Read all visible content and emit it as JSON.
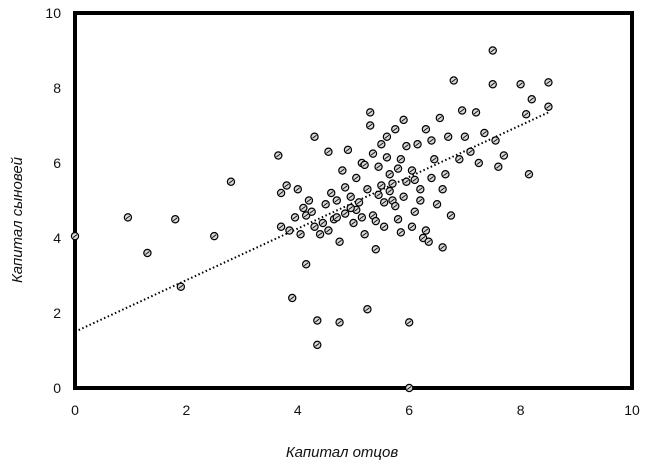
{
  "chart_data": {
    "type": "scatter",
    "title": "",
    "xlabel": "Капитал отцов",
    "ylabel": "Капитал сыновей",
    "xlim": [
      0,
      10
    ],
    "ylim": [
      0,
      10
    ],
    "x_ticks": [
      "0",
      "2",
      "4",
      "6",
      "8",
      "10"
    ],
    "y_ticks": [
      "0",
      "2",
      "4",
      "6",
      "8",
      "10"
    ],
    "grid": false,
    "legend": "none",
    "trendline": {
      "type": "linear",
      "x": [
        0,
        8.5
      ],
      "y": [
        1.5,
        7.35
      ]
    },
    "points": [
      [
        0,
        4.05
      ],
      [
        0.95,
        4.55
      ],
      [
        1.3,
        3.6
      ],
      [
        1.8,
        4.5
      ],
      [
        1.9,
        2.7
      ],
      [
        2.5,
        4.05
      ],
      [
        2.8,
        5.5
      ],
      [
        3.65,
        6.2
      ],
      [
        3.7,
        4.3
      ],
      [
        3.7,
        5.2
      ],
      [
        3.8,
        5.4
      ],
      [
        3.85,
        4.2
      ],
      [
        3.9,
        2.4
      ],
      [
        3.95,
        4.55
      ],
      [
        4.0,
        5.3
      ],
      [
        4.05,
        4.1
      ],
      [
        4.1,
        4.8
      ],
      [
        4.15,
        3.3
      ],
      [
        4.15,
        4.6
      ],
      [
        4.2,
        5.0
      ],
      [
        4.25,
        4.7
      ],
      [
        4.3,
        6.7
      ],
      [
        4.35,
        1.8
      ],
      [
        4.35,
        1.15
      ],
      [
        4.4,
        4.1
      ],
      [
        4.45,
        4.4
      ],
      [
        4.5,
        4.9
      ],
      [
        4.55,
        6.3
      ],
      [
        4.6,
        5.2
      ],
      [
        4.65,
        4.5
      ],
      [
        4.7,
        5.0
      ],
      [
        4.75,
        3.9
      ],
      [
        4.75,
        1.75
      ],
      [
        4.8,
        5.8
      ],
      [
        4.85,
        4.65
      ],
      [
        4.9,
        6.35
      ],
      [
        4.95,
        5.1
      ],
      [
        5.0,
        4.4
      ],
      [
        5.05,
        5.6
      ],
      [
        5.1,
        4.95
      ],
      [
        5.15,
        6.0
      ],
      [
        5.2,
        4.1
      ],
      [
        5.25,
        5.3
      ],
      [
        5.3,
        7.0
      ],
      [
        5.3,
        7.35
      ],
      [
        5.25,
        2.1
      ],
      [
        5.35,
        4.6
      ],
      [
        5.4,
        3.7
      ],
      [
        5.45,
        5.9
      ],
      [
        5.5,
        5.4
      ],
      [
        5.55,
        4.3
      ],
      [
        5.6,
        6.7
      ],
      [
        5.65,
        5.7
      ],
      [
        5.7,
        5.0
      ],
      [
        5.75,
        6.9
      ],
      [
        5.8,
        4.5
      ],
      [
        5.85,
        6.1
      ],
      [
        5.9,
        7.15
      ],
      [
        5.95,
        5.5
      ],
      [
        6.0,
        1.75
      ],
      [
        6.0,
        0.0
      ],
      [
        6.05,
        5.8
      ],
      [
        6.1,
        4.7
      ],
      [
        6.15,
        6.5
      ],
      [
        6.2,
        5.3
      ],
      [
        6.25,
        4.0
      ],
      [
        6.3,
        6.9
      ],
      [
        6.35,
        3.9
      ],
      [
        6.4,
        5.6
      ],
      [
        6.45,
        6.1
      ],
      [
        6.5,
        4.9
      ],
      [
        6.55,
        7.2
      ],
      [
        6.6,
        3.75
      ],
      [
        6.65,
        5.7
      ],
      [
        6.7,
        6.7
      ],
      [
        6.75,
        4.6
      ],
      [
        6.8,
        8.2
      ],
      [
        6.9,
        6.1
      ],
      [
        6.95,
        7.4
      ],
      [
        7.0,
        6.7
      ],
      [
        7.1,
        6.3
      ],
      [
        7.2,
        7.35
      ],
      [
        7.25,
        6.0
      ],
      [
        7.35,
        6.8
      ],
      [
        7.5,
        9.0
      ],
      [
        7.5,
        8.1
      ],
      [
        7.55,
        6.6
      ],
      [
        7.6,
        5.9
      ],
      [
        7.7,
        6.2
      ],
      [
        8.0,
        8.1
      ],
      [
        8.1,
        7.3
      ],
      [
        8.15,
        5.7
      ],
      [
        8.2,
        7.7
      ],
      [
        8.5,
        8.15
      ],
      [
        8.5,
        7.5
      ],
      [
        4.55,
        4.2
      ],
      [
        4.85,
        5.35
      ],
      [
        5.05,
        4.75
      ],
      [
        5.35,
        6.25
      ],
      [
        5.45,
        5.15
      ],
      [
        5.6,
        6.15
      ],
      [
        5.7,
        5.45
      ],
      [
        5.8,
        5.85
      ],
      [
        5.95,
        6.45
      ],
      [
        6.05,
        4.3
      ],
      [
        6.2,
        5.0
      ],
      [
        6.3,
        4.2
      ],
      [
        5.15,
        4.55
      ],
      [
        4.95,
        4.8
      ],
      [
        5.55,
        4.95
      ],
      [
        5.65,
        5.25
      ],
      [
        5.75,
        4.85
      ],
      [
        6.1,
        5.55
      ],
      [
        6.4,
        6.6
      ],
      [
        5.9,
        5.1
      ],
      [
        5.5,
        6.5
      ],
      [
        5.85,
        4.15
      ],
      [
        4.7,
        4.55
      ],
      [
        4.3,
        4.3
      ],
      [
        5.2,
        5.95
      ],
      [
        5.4,
        4.45
      ],
      [
        6.6,
        5.3
      ]
    ]
  }
}
